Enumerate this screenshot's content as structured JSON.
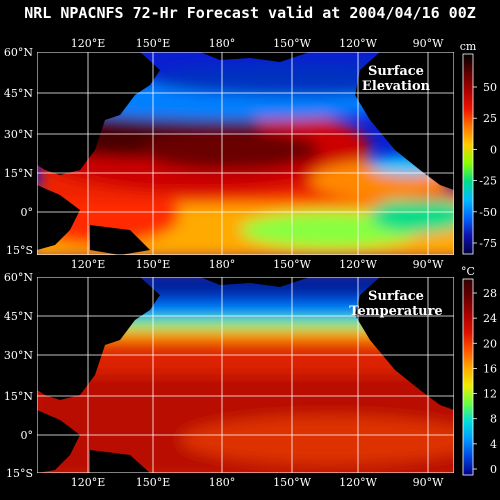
{
  "title": "NRL NPACNFS 72-Hr Forecast valid at 2004/04/16 00Z",
  "longitude_ticks": [
    "120°E",
    "150°E",
    "180°",
    "150°W",
    "120°W",
    "90°W"
  ],
  "latitude_ticks": [
    "60°N",
    "45°N",
    "30°N",
    "15°N",
    "0°",
    "15°S"
  ],
  "panels": [
    {
      "id": "elevation",
      "label_line1": "Surface",
      "label_line2": "Elevation",
      "unit": "cm",
      "colorbar_ticks": [
        "50",
        "25",
        "0",
        "-25",
        "-50",
        "-75"
      ],
      "colors": [
        "#000000",
        "#5a0000",
        "#aa0000",
        "#ee1100",
        "#ff7700",
        "#ffcc00",
        "#88ff00",
        "#00dd88",
        "#00bbff",
        "#0066ff",
        "#1111aa",
        "#000044"
      ]
    },
    {
      "id": "temperature",
      "label_line1": "Surface",
      "label_line2": "Temperature",
      "unit": "°C",
      "colorbar_ticks": [
        "28",
        "24",
        "20",
        "16",
        "12",
        "8",
        "4",
        "0"
      ],
      "colors": [
        "#330000",
        "#660000",
        "#aa0000",
        "#dd1100",
        "#ff5500",
        "#ffaa00",
        "#eeee00",
        "#66ff44",
        "#00dddd",
        "#0099ff",
        "#0044dd",
        "#000088"
      ]
    }
  ]
}
